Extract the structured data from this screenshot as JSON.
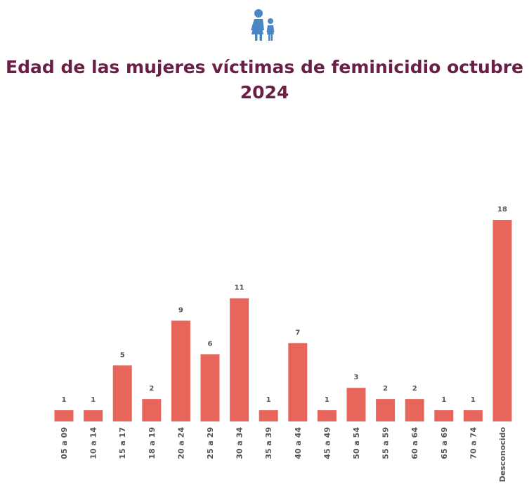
{
  "header": {
    "icon": "mother-and-daughter-icon",
    "title_line1": "Edad de las mujeres víctimas de feminicidio octubre",
    "title_line2": "2024"
  },
  "colors": {
    "bar": "#e8655b",
    "title": "#6b1f45",
    "icon": "#4a86c4",
    "label": "#555555"
  },
  "chart_data": {
    "type": "bar",
    "title": "Edad de las mujeres víctimas de feminicidio octubre 2024",
    "xlabel": "",
    "ylabel": "",
    "categories": [
      "05 a 09",
      "10 a 14",
      "15 a 17",
      "18 a 19",
      "20 a 24",
      "25 a 29",
      "30 a 34",
      "35 a 39",
      "40 a 44",
      "45 a 49",
      "50 a 54",
      "55 a 59",
      "60 a 64",
      "65 a 69",
      "70 a 74",
      "Desconocido"
    ],
    "values": [
      1,
      1,
      5,
      2,
      9,
      6,
      11,
      1,
      7,
      1,
      3,
      2,
      2,
      1,
      1,
      18
    ],
    "ylim": [
      0,
      18
    ],
    "grid": false,
    "data_labels": true
  }
}
